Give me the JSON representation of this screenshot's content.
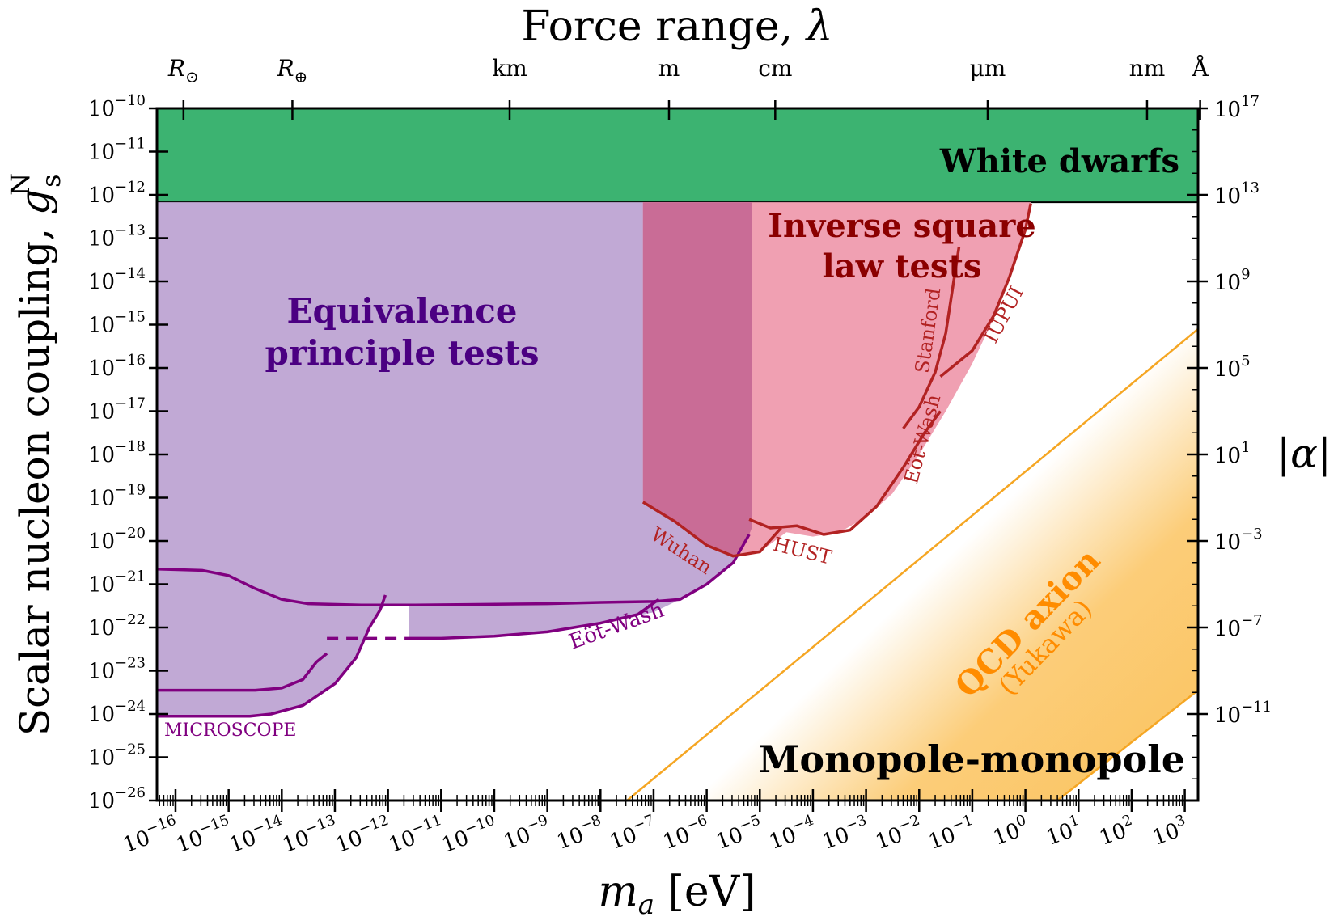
{
  "chart_data": {
    "type": "area",
    "x_axis": {
      "label_var": "m",
      "label_sub": "a",
      "label_unit": " [eV]",
      "scale": "log",
      "xlim": [
        -16.35,
        3.25
      ],
      "tick_exponents": [
        -16,
        -15,
        -14,
        -13,
        -12,
        -11,
        -10,
        -9,
        -8,
        -7,
        -6,
        -5,
        -4,
        -3,
        -2,
        -1,
        0,
        1,
        2,
        3
      ]
    },
    "y_axis": {
      "label_text": "Scalar nucleon coupling, ",
      "label_var": "g",
      "label_sub": "s",
      "label_sup": "N",
      "scale": "log",
      "ylim": [
        -26,
        -10
      ],
      "tick_exponents": [
        -26,
        -25,
        -24,
        -23,
        -22,
        -21,
        -20,
        -19,
        -18,
        -17,
        -16,
        -15,
        -14,
        -13,
        -12,
        -11,
        -10
      ]
    },
    "top_axis": {
      "label_text": "Force range, ",
      "label_var": "λ",
      "ticks": [
        {
          "label": "R",
          "sym": "⊙",
          "x_log": -15.85
        },
        {
          "label": "R",
          "sym": "⊕",
          "x_log": -13.8
        },
        {
          "label": "km",
          "sym": "",
          "x_log": -9.71
        },
        {
          "label": "m",
          "sym": "",
          "x_log": -6.71
        },
        {
          "label": "cm",
          "sym": "",
          "x_log": -4.71
        },
        {
          "label": "μm",
          "sym": "",
          "x_log": -0.71
        },
        {
          "label": "nm",
          "sym": "",
          "x_log": 2.29
        },
        {
          "label": "Å",
          "sym": "",
          "x_log": 3.29
        }
      ]
    },
    "right_axis": {
      "label": "|α|",
      "ticks": [
        {
          "exp": "17",
          "y_log": -10.0
        },
        {
          "exp": "13",
          "y_log": -12.0
        },
        {
          "exp": "9",
          "y_log": -14.0
        },
        {
          "exp": "5",
          "y_log": -16.0
        },
        {
          "exp": "1",
          "y_log": -18.0
        },
        {
          "exp": "−3",
          "y_log": -20.0
        },
        {
          "exp": "−7",
          "y_log": -22.0
        },
        {
          "exp": "−11",
          "y_log": -24.0
        }
      ]
    },
    "regions": [
      {
        "name": "White dwarfs",
        "color": "#3cb371",
        "y_range_log": [
          -12.17,
          -10
        ]
      },
      {
        "name": "Equivalence principle tests",
        "color": "#c1a9d5",
        "boundary": [
          [
            -16.35,
            -24.05
          ],
          [
            -14.6,
            -24.05
          ],
          [
            -14.2,
            -24.0
          ],
          [
            -13.6,
            -23.8
          ],
          [
            -13.0,
            -23.3
          ],
          [
            -12.6,
            -22.7
          ],
          [
            -12.35,
            -22.0
          ],
          [
            -12.15,
            -21.6
          ],
          [
            -12.0,
            -21.45
          ],
          [
            -11.6,
            -21.45
          ],
          [
            -11.6,
            -22.25
          ],
          [
            -11.0,
            -22.25
          ],
          [
            -10.0,
            -22.2
          ],
          [
            -9.0,
            -22.1
          ],
          [
            -8.0,
            -21.9
          ],
          [
            -7.0,
            -21.65
          ],
          [
            -6.5,
            -21.35
          ],
          [
            -6.0,
            -21.0
          ],
          [
            -5.5,
            -20.5
          ],
          [
            -5.3,
            -20.2
          ],
          [
            -5.2,
            -19.9
          ],
          [
            -5.15,
            -19.7
          ],
          [
            -5.15,
            -12.17
          ],
          [
            -16.35,
            -12.17
          ]
        ]
      },
      {
        "name": "Inverse square law tests",
        "color": "#f0a0b2",
        "boundary": [
          [
            -7.2,
            -19.1
          ],
          [
            -6.6,
            -19.55
          ],
          [
            -6.0,
            -20.1
          ],
          [
            -5.5,
            -20.35
          ],
          [
            -5.0,
            -20.25
          ],
          [
            -4.5,
            -19.8
          ],
          [
            -4.0,
            -19.9
          ],
          [
            -3.5,
            -19.8
          ],
          [
            -3.0,
            -19.45
          ],
          [
            -2.5,
            -18.9
          ],
          [
            -2.0,
            -18.0
          ],
          [
            -1.5,
            -17.0
          ],
          [
            -1.0,
            -15.9
          ],
          [
            -0.5,
            -14.6
          ],
          [
            -0.1,
            -13.2
          ],
          [
            0.1,
            -12.17
          ],
          [
            -7.2,
            -12.17
          ]
        ]
      },
      {
        "name": "overlap",
        "color": "#c96c96",
        "boundary": [
          [
            -7.2,
            -12.17
          ],
          [
            -5.15,
            -12.17
          ],
          [
            -5.15,
            -19.7
          ],
          [
            -5.3,
            -20.15
          ],
          [
            -5.5,
            -20.35
          ],
          [
            -6.0,
            -20.1
          ],
          [
            -6.6,
            -19.55
          ],
          [
            -7.2,
            -19.1
          ]
        ]
      },
      {
        "name": "QCD axion",
        "color": "#fbc461",
        "band_edges": [
          [
            [
              -7.5,
              -26
            ],
            [
              3.25,
              -15.1
            ]
          ],
          [
            [
              0.6,
              -26
            ],
            [
              3.25,
              -23.45
            ]
          ]
        ]
      }
    ],
    "limit_curves": [
      {
        "name": "MICROSCOPE",
        "color": "#800080",
        "points": [
          [
            -16.35,
            -20.65
          ],
          [
            -15.5,
            -20.68
          ],
          [
            -15.0,
            -20.8
          ],
          [
            -14.5,
            -21.1
          ],
          [
            -14.0,
            -21.35
          ],
          [
            -13.5,
            -21.45
          ],
          [
            -12.5,
            -21.48
          ],
          [
            -11.5,
            -21.48
          ],
          [
            -10.5,
            -21.47
          ],
          [
            -9.0,
            -21.45
          ],
          [
            -8.0,
            -21.42
          ],
          [
            -7.0,
            -21.4
          ],
          [
            -6.5,
            -21.35
          ],
          [
            -6.0,
            -21.0
          ],
          [
            -5.5,
            -20.5
          ],
          [
            -5.2,
            -19.85
          ]
        ]
      },
      {
        "name": "MICROSCOPE lower",
        "color": "#800080",
        "points": [
          [
            -16.35,
            -24.05
          ],
          [
            -14.6,
            -24.05
          ],
          [
            -14.2,
            -24.0
          ],
          [
            -13.6,
            -23.8
          ],
          [
            -13.0,
            -23.3
          ],
          [
            -12.6,
            -22.7
          ],
          [
            -12.35,
            -22.0
          ],
          [
            -12.15,
            -21.6
          ],
          [
            -12.05,
            -21.25
          ]
        ]
      },
      {
        "name": "MICROSCOPE step",
        "color": "#800080",
        "points": [
          [
            -16.35,
            -23.45
          ],
          [
            -14.5,
            -23.45
          ],
          [
            -14.0,
            -23.4
          ],
          [
            -13.6,
            -23.2
          ],
          [
            -13.35,
            -22.8
          ],
          [
            -13.15,
            -22.6
          ]
        ]
      },
      {
        "name": "Eöt-Wash",
        "color": "#800080",
        "points": [
          [
            -11.6,
            -22.25
          ],
          [
            -11.0,
            -22.25
          ],
          [
            -10.0,
            -22.2
          ],
          [
            -9.0,
            -22.1
          ],
          [
            -8.0,
            -21.9
          ],
          [
            -7.3,
            -21.7
          ],
          [
            -6.9,
            -21.35
          ]
        ]
      },
      {
        "name": "Wuhan",
        "color": "#b22222",
        "points": [
          [
            -7.2,
            -19.1
          ],
          [
            -6.6,
            -19.55
          ],
          [
            -6.0,
            -20.1
          ],
          [
            -5.5,
            -20.35
          ],
          [
            -5.0,
            -20.25
          ],
          [
            -4.6,
            -19.7
          ]
        ]
      },
      {
        "name": "HUST",
        "color": "#b22222",
        "points": [
          [
            -5.2,
            -19.5
          ],
          [
            -4.8,
            -19.7
          ],
          [
            -4.3,
            -19.65
          ],
          [
            -3.8,
            -19.85
          ],
          [
            -3.3,
            -19.75
          ],
          [
            -2.8,
            -19.2
          ],
          [
            -2.3,
            -18.3
          ],
          [
            -1.9,
            -17.5
          ],
          [
            -1.6,
            -17.0
          ]
        ]
      },
      {
        "name": "IUPUI",
        "color": "#b22222",
        "points": [
          [
            -1.6,
            -16.2
          ],
          [
            -1.0,
            -15.6
          ],
          [
            -0.6,
            -14.8
          ],
          [
            -0.3,
            -13.9
          ],
          [
            0.0,
            -12.8
          ],
          [
            0.1,
            -12.2
          ]
        ]
      },
      {
        "name": "Stanford",
        "color": "#b22222",
        "points": [
          [
            -2.3,
            -17.4
          ],
          [
            -2.0,
            -16.9
          ],
          [
            -1.7,
            -16.1
          ],
          [
            -1.5,
            -15.2
          ],
          [
            -1.35,
            -14.0
          ],
          [
            -1.25,
            -13.2
          ]
        ]
      }
    ],
    "labels": {
      "white_dwarfs": "White dwarfs",
      "ep_line1": "Equivalence",
      "ep_line2": "principle tests",
      "isl_line1": "Inverse square",
      "isl_line2": "law tests",
      "monopole": "Monopole-monopole",
      "qcd": "QCD axion",
      "yukawa": "(Yukawa)",
      "microscope": "MICROSCOPE",
      "eotwash_ep": "Eöt-Wash",
      "wuhan": "Wuhan",
      "hust": "HUST",
      "eotwash_isl": "Eöt-Wash",
      "stanford": "Stanford",
      "iupui": "IUPUI"
    },
    "colors": {
      "ep_curve": "#800080",
      "isl_curve": "#b22222",
      "isl_text": "#8b0000",
      "ep_text": "#4b0082",
      "qcd_text": "#ff8c00",
      "qcd_line": "#f5a623"
    }
  }
}
